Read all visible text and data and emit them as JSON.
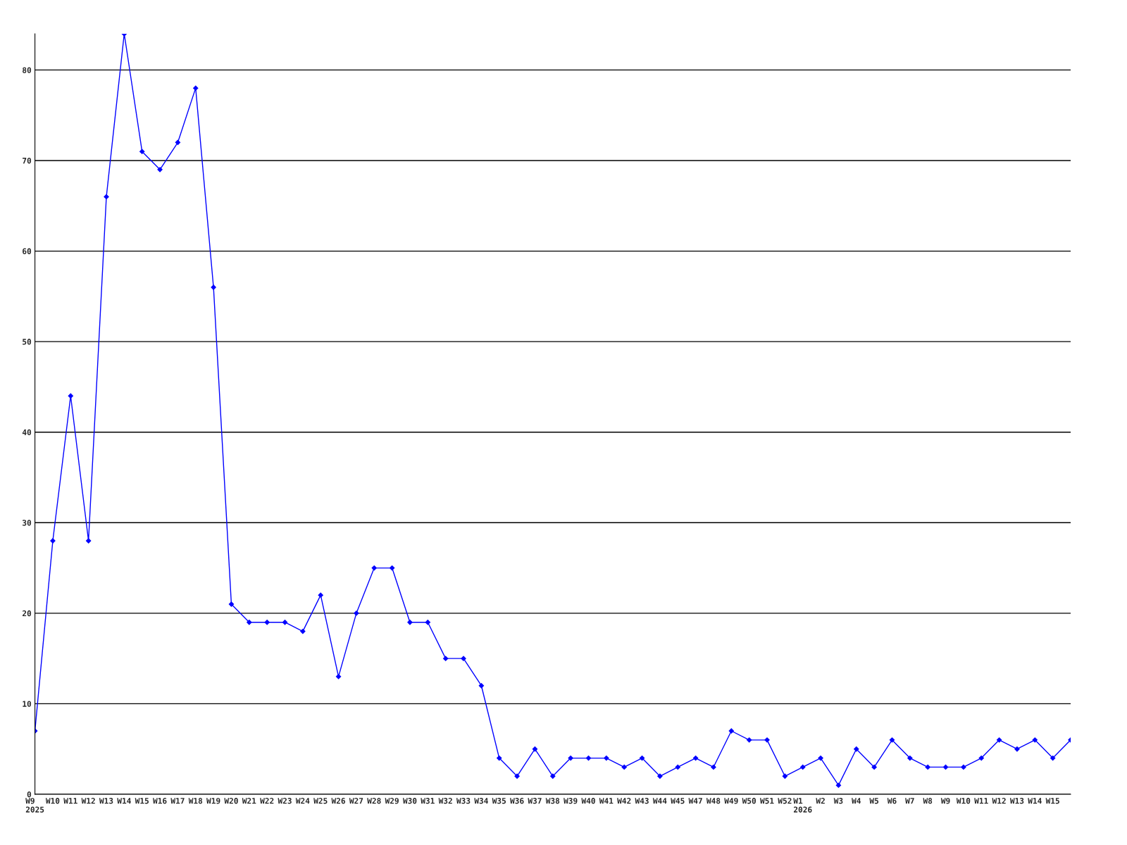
{
  "chart_data": {
    "type": "line",
    "categories": [
      "W9\n2025",
      "W10",
      "W11",
      "W12",
      "W13",
      "W14",
      "W15",
      "W16",
      "W17",
      "W18",
      "W19",
      "W20",
      "W21",
      "W22",
      "W23",
      "W24",
      "W25",
      "W26",
      "W27",
      "W28",
      "W29",
      "W30",
      "W31",
      "W32",
      "W33",
      "W34",
      "W35",
      "W36",
      "W37",
      "W38",
      "W39",
      "W40",
      "W41",
      "W42",
      "W43",
      "W44",
      "W45",
      "W47",
      "W48",
      "W49",
      "W50",
      "W51",
      "W52",
      "W1\n2026",
      "W2",
      "W3",
      "W4",
      "W5",
      "W6",
      "W7",
      "W8",
      "W9",
      "W10",
      "W11",
      "W12",
      "W13",
      "W14",
      "W15",
      null
    ],
    "series": [
      {
        "color": "#0000ff",
        "values": [
          7,
          28,
          44,
          28,
          66,
          84,
          71,
          69,
          72,
          78,
          56,
          21,
          19,
          19,
          19,
          18,
          22,
          13,
          20,
          25,
          25,
          19,
          19,
          15,
          15,
          12,
          4,
          2,
          5,
          2,
          4,
          4,
          4,
          3,
          4,
          2,
          3,
          4,
          3,
          7,
          6,
          6,
          2,
          3,
          4,
          1,
          5,
          3,
          6,
          4,
          3,
          3,
          3,
          4,
          6,
          5,
          6,
          4,
          6
        ]
      }
    ],
    "ylim": [
      0,
      84
    ],
    "yticks": [
      0,
      10,
      20,
      30,
      40,
      50,
      60,
      70,
      80
    ],
    "grid": "y",
    "marker": "diamond",
    "line_style": "solid"
  }
}
